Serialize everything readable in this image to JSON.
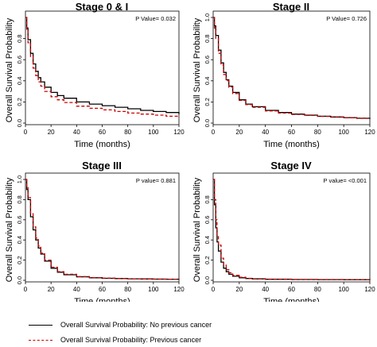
{
  "chart_data": [
    {
      "type": "line",
      "title": "Stage 0 & I",
      "annotation": "P Value= 0.032",
      "xlabel": "Time (months)",
      "ylabel": "Overall Survival Probability",
      "xlim": [
        0,
        120
      ],
      "ylim": [
        0,
        1.0
      ],
      "xticks": [
        "0",
        "20",
        "40",
        "60",
        "80",
        "100",
        "120"
      ],
      "yticks": [
        "0.0",
        "0.2",
        "0.4",
        "0.6",
        "0.8"
      ],
      "grid": false,
      "series": [
        {
          "name": "Overall Survival Probability: No previous cancer",
          "color": "#000000",
          "dash": "solid",
          "x": [
            0,
            1,
            2,
            4,
            6,
            8,
            10,
            12,
            15,
            20,
            25,
            30,
            40,
            50,
            60,
            70,
            80,
            90,
            100,
            110,
            120
          ],
          "y": [
            1.0,
            0.9,
            0.79,
            0.66,
            0.56,
            0.49,
            0.43,
            0.39,
            0.34,
            0.29,
            0.26,
            0.235,
            0.2,
            0.18,
            0.165,
            0.15,
            0.135,
            0.12,
            0.11,
            0.1,
            0.085
          ]
        },
        {
          "name": "Overall Survival Probability: Previous cancer",
          "color": "#cc0000",
          "dash": "dashed",
          "x": [
            0,
            1,
            2,
            4,
            6,
            8,
            10,
            12,
            15,
            20,
            25,
            30,
            40,
            50,
            60,
            70,
            80,
            90,
            100,
            110,
            120
          ],
          "y": [
            1.0,
            0.88,
            0.76,
            0.63,
            0.52,
            0.45,
            0.39,
            0.35,
            0.3,
            0.25,
            0.22,
            0.195,
            0.16,
            0.14,
            0.125,
            0.11,
            0.095,
            0.085,
            0.075,
            0.065,
            0.055
          ]
        }
      ]
    },
    {
      "type": "line",
      "title": "Stage II",
      "annotation": "P Value= 0.726",
      "xlabel": "Time (months)",
      "ylabel": "Overall Survival Probability",
      "xlim": [
        0,
        120
      ],
      "ylim": [
        0,
        1.0
      ],
      "xticks": [
        "0",
        "20",
        "40",
        "60",
        "80",
        "100",
        "120"
      ],
      "yticks": [
        "0.0",
        "0.2",
        "0.4",
        "0.6",
        "0.8",
        "1.0"
      ],
      "grid": false,
      "series": [
        {
          "name": "Overall Survival Probability: No previous cancer",
          "color": "#000000",
          "dash": "solid",
          "x": [
            0,
            1,
            2,
            4,
            6,
            8,
            10,
            12,
            15,
            20,
            25,
            30,
            40,
            50,
            60,
            70,
            80,
            90,
            100,
            110,
            120
          ],
          "y": [
            1.0,
            0.92,
            0.83,
            0.69,
            0.57,
            0.48,
            0.41,
            0.35,
            0.29,
            0.22,
            0.18,
            0.155,
            0.12,
            0.1,
            0.085,
            0.075,
            0.065,
            0.058,
            0.052,
            0.046,
            0.04
          ]
        },
        {
          "name": "Overall Survival Probability: Previous cancer",
          "color": "#cc0000",
          "dash": "dashed",
          "x": [
            0,
            1,
            2,
            4,
            6,
            8,
            10,
            12,
            15,
            20,
            25,
            30,
            40,
            50,
            60,
            70,
            80,
            90,
            100,
            110,
            120
          ],
          "y": [
            1.0,
            0.9,
            0.8,
            0.66,
            0.55,
            0.46,
            0.4,
            0.34,
            0.28,
            0.215,
            0.175,
            0.15,
            0.115,
            0.095,
            0.082,
            0.072,
            0.063,
            0.056,
            0.05,
            0.044,
            0.038
          ]
        }
      ]
    },
    {
      "type": "line",
      "title": "Stage III",
      "annotation": "P value= 0.881",
      "xlabel": "Time (months)",
      "ylabel": "Overall Survival Probability",
      "xlim": [
        0,
        120
      ],
      "ylim": [
        0,
        1.0
      ],
      "xticks": [
        "0",
        "20",
        "40",
        "60",
        "80",
        "100",
        "120"
      ],
      "yticks": [
        "0.0",
        "0.2",
        "0.4",
        "0.6",
        "0.8",
        "1.0"
      ],
      "grid": false,
      "series": [
        {
          "name": "Overall Survival Probability: No previous cancer",
          "color": "#000000",
          "dash": "solid",
          "x": [
            0,
            1,
            2,
            4,
            6,
            8,
            10,
            12,
            15,
            20,
            25,
            30,
            40,
            50,
            60,
            70,
            80,
            90,
            100,
            110,
            120
          ],
          "y": [
            1.0,
            0.9,
            0.8,
            0.63,
            0.5,
            0.4,
            0.32,
            0.26,
            0.19,
            0.12,
            0.08,
            0.055,
            0.035,
            0.025,
            0.02,
            0.017,
            0.015,
            0.013,
            0.012,
            0.011,
            0.01
          ]
        },
        {
          "name": "Overall Survival Probability: Previous cancer",
          "color": "#cc0000",
          "dash": "dashed",
          "x": [
            0,
            1,
            2,
            4,
            6,
            8,
            10,
            12,
            15,
            20,
            25,
            30,
            40,
            50,
            60,
            70,
            80,
            90,
            100,
            110,
            120
          ],
          "y": [
            1.0,
            0.92,
            0.82,
            0.66,
            0.53,
            0.42,
            0.34,
            0.27,
            0.2,
            0.13,
            0.085,
            0.06,
            0.037,
            0.027,
            0.021,
            0.018,
            0.015,
            0.013,
            0.012,
            0.011,
            0.01
          ]
        }
      ]
    },
    {
      "type": "line",
      "title": "Stage IV",
      "annotation": "P value= <0.001",
      "xlabel": "Time (months)",
      "ylabel": "Overall Survival Probability",
      "xlim": [
        0,
        120
      ],
      "ylim": [
        0,
        1.0
      ],
      "xticks": [
        "0",
        "20",
        "40",
        "60",
        "80",
        "100",
        "120"
      ],
      "yticks": [
        "0.0",
        "0.2",
        "0.4",
        "0.6",
        "0.8"
      ],
      "grid": false,
      "series": [
        {
          "name": "Overall Survival Probability: No previous cancer",
          "color": "#000000",
          "dash": "solid",
          "x": [
            0,
            1,
            2,
            3,
            4,
            6,
            8,
            10,
            12,
            15,
            20,
            25,
            30,
            40,
            60,
            80,
            100,
            120
          ],
          "y": [
            1.0,
            0.75,
            0.52,
            0.38,
            0.29,
            0.18,
            0.12,
            0.085,
            0.06,
            0.04,
            0.025,
            0.018,
            0.014,
            0.01,
            0.008,
            0.007,
            0.006,
            0.005
          ]
        },
        {
          "name": "Overall Survival Probability: Previous cancer",
          "color": "#cc0000",
          "dash": "dashed",
          "x": [
            0,
            1,
            2,
            3,
            4,
            6,
            8,
            10,
            12,
            15,
            20,
            25,
            30,
            40,
            60,
            80,
            100,
            120
          ],
          "y": [
            1.0,
            0.8,
            0.6,
            0.45,
            0.35,
            0.22,
            0.15,
            0.105,
            0.075,
            0.05,
            0.03,
            0.02,
            0.016,
            0.012,
            0.009,
            0.008,
            0.007,
            0.006
          ]
        }
      ]
    }
  ],
  "legend": {
    "items": [
      {
        "label": "Overall Survival Probability: No previous cancer",
        "color": "#000000",
        "dash": "solid"
      },
      {
        "label": "Overall Survival Probability: Previous cancer",
        "color": "#cc0000",
        "dash": "dashed"
      }
    ]
  }
}
